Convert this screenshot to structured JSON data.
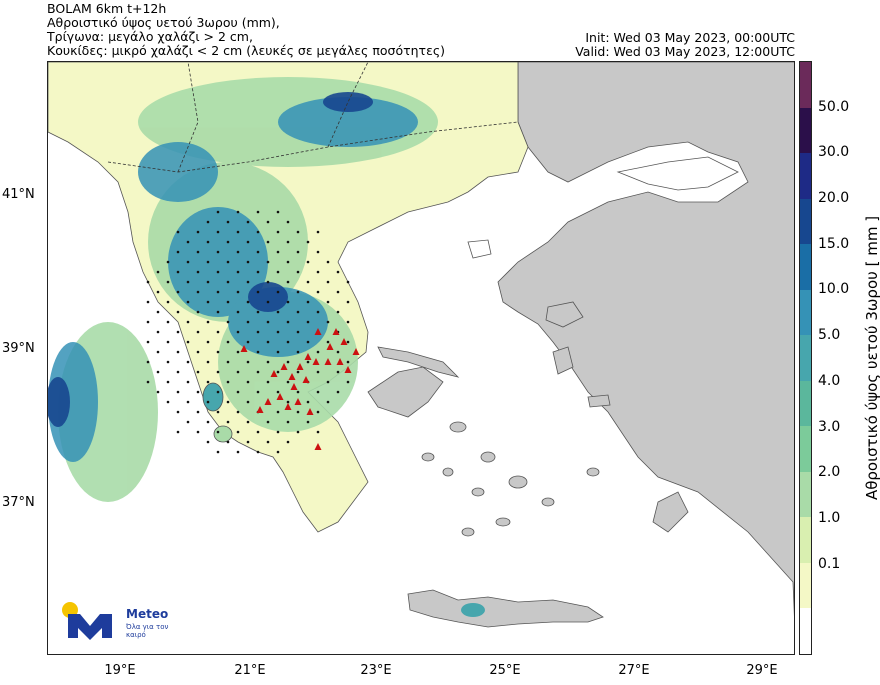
{
  "header": {
    "left_lines": [
      "BOLAM 6km t+12h",
      "Αθροιστικό ύψος υετού 3ωρου (mm),",
      "Τρίγωνα: μεγάλο χαλάζι > 2 cm,",
      "Κουκίδες: μικρό χαλάζι < 2 cm (λευκές σε μεγάλες ποσότητες)"
    ],
    "init": "Init: Wed 03 May 2023, 00:00UTC",
    "valid": "Valid: Wed 03 May 2023, 12:00UTC"
  },
  "axes": {
    "lat_labels": [
      "41°N",
      "39°N",
      "37°N"
    ],
    "lon_labels": [
      "19°E",
      "21°E",
      "23°E",
      "25°E",
      "27°E",
      "29°E"
    ]
  },
  "colorbar": {
    "title": "Αθροιστικό ύψος υετού 3ωρου [ mm ]",
    "tick_labels": [
      "50.0",
      "30.0",
      "20.0",
      "15.0",
      "10.0",
      "5.0",
      "4.0",
      "3.0",
      "2.0",
      "1.0",
      "0.1"
    ],
    "colors": [
      "#6b2a5a",
      "#2b0f4a",
      "#1e2a86",
      "#17478f",
      "#1a6ea6",
      "#3592b6",
      "#47a6ad",
      "#5bb79c",
      "#7ccb9a",
      "#a9dba8",
      "#d9efb0",
      "#f4f8c6",
      "#ffffff"
    ]
  },
  "map_colors": {
    "sea": "#ffffff",
    "land_gray": "#c8c8c8",
    "hail_large": "#cc1111",
    "hail_small": "#111111"
  },
  "logo": {
    "name": "Meteo",
    "tagline": "Όλα για τον καιρό"
  }
}
